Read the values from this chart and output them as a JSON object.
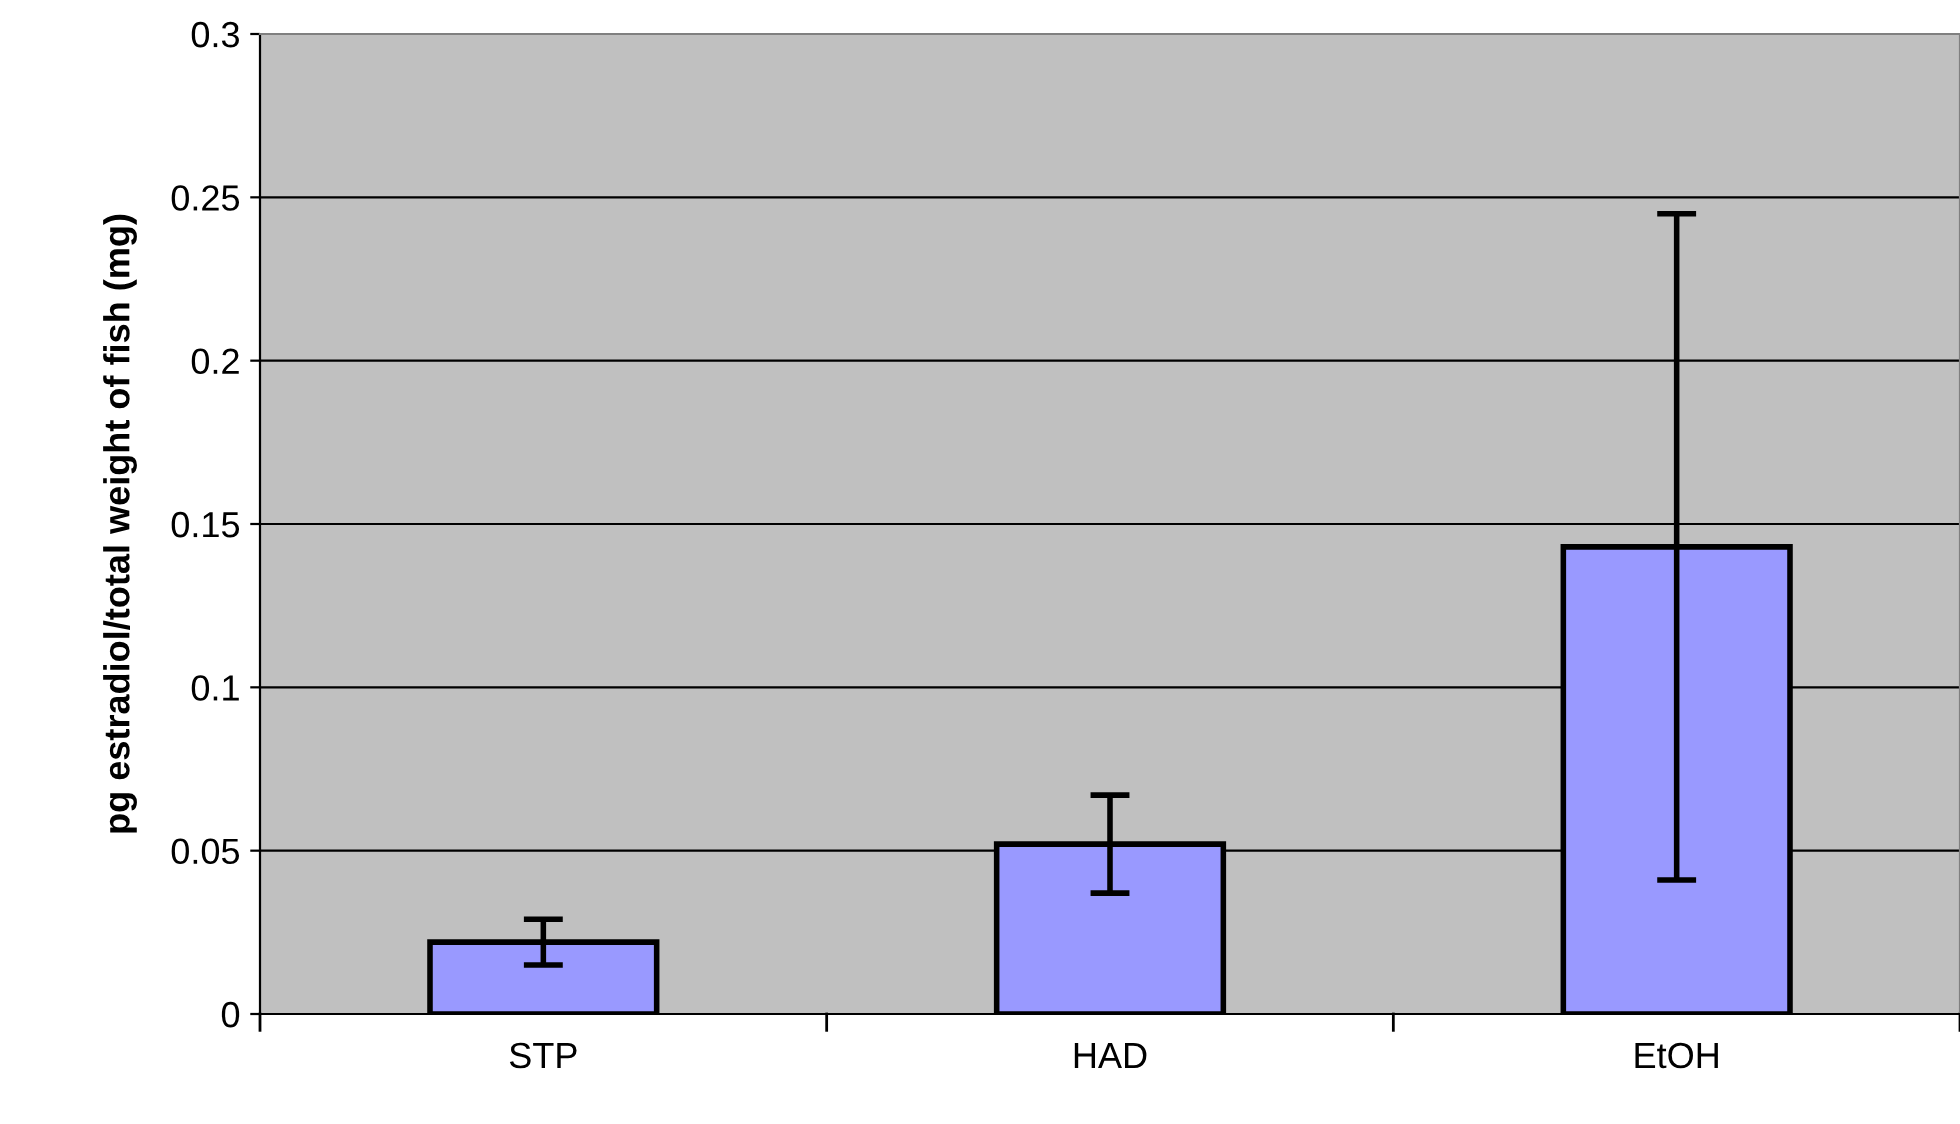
{
  "chart_data": {
    "type": "bar",
    "ylabel": "pg estradiol/total weight of fish (mg)",
    "categories": [
      "STP",
      "HAD",
      "EtOH"
    ],
    "values": [
      0.022,
      0.052,
      0.143
    ],
    "errors": [
      0.007,
      0.015,
      0.102
    ],
    "color": "#9999ff",
    "ylim": [
      0,
      0.3
    ],
    "yticks": [
      0,
      0.05,
      0.1,
      0.15,
      0.2,
      0.25,
      0.3
    ],
    "grid": "y"
  }
}
